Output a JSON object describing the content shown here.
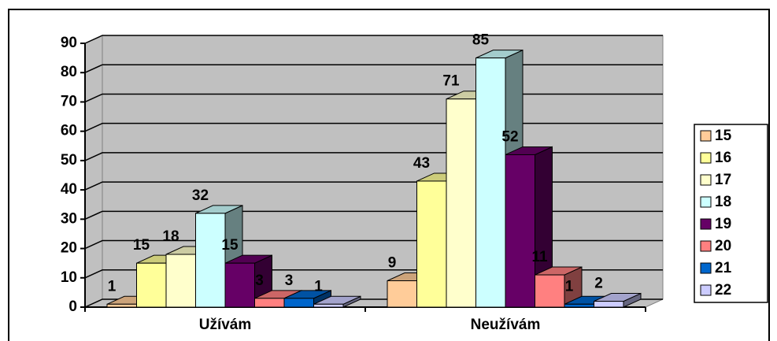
{
  "chart_data": {
    "type": "bar3d",
    "categories": [
      "Užívám",
      "Neužívám"
    ],
    "series": [
      {
        "name": "15",
        "color": "#ffcc99",
        "values": [
          1,
          9
        ]
      },
      {
        "name": "16",
        "color": "#ffff99",
        "values": [
          15,
          43
        ]
      },
      {
        "name": "17",
        "color": "#ffffcc",
        "values": [
          18,
          71
        ]
      },
      {
        "name": "18",
        "color": "#ccffff",
        "values": [
          32,
          85
        ]
      },
      {
        "name": "19",
        "color": "#660066",
        "values": [
          15,
          52
        ]
      },
      {
        "name": "20",
        "color": "#ff8080",
        "values": [
          3,
          11
        ]
      },
      {
        "name": "21",
        "color": "#0066cc",
        "values": [
          3,
          1
        ]
      },
      {
        "name": "22",
        "color": "#ccccff",
        "values": [
          1,
          2
        ]
      }
    ],
    "ylim": [
      0,
      90
    ],
    "yticks": [
      0,
      10,
      20,
      30,
      40,
      50,
      60,
      70,
      80,
      90
    ],
    "grid": true,
    "legend": "right"
  }
}
